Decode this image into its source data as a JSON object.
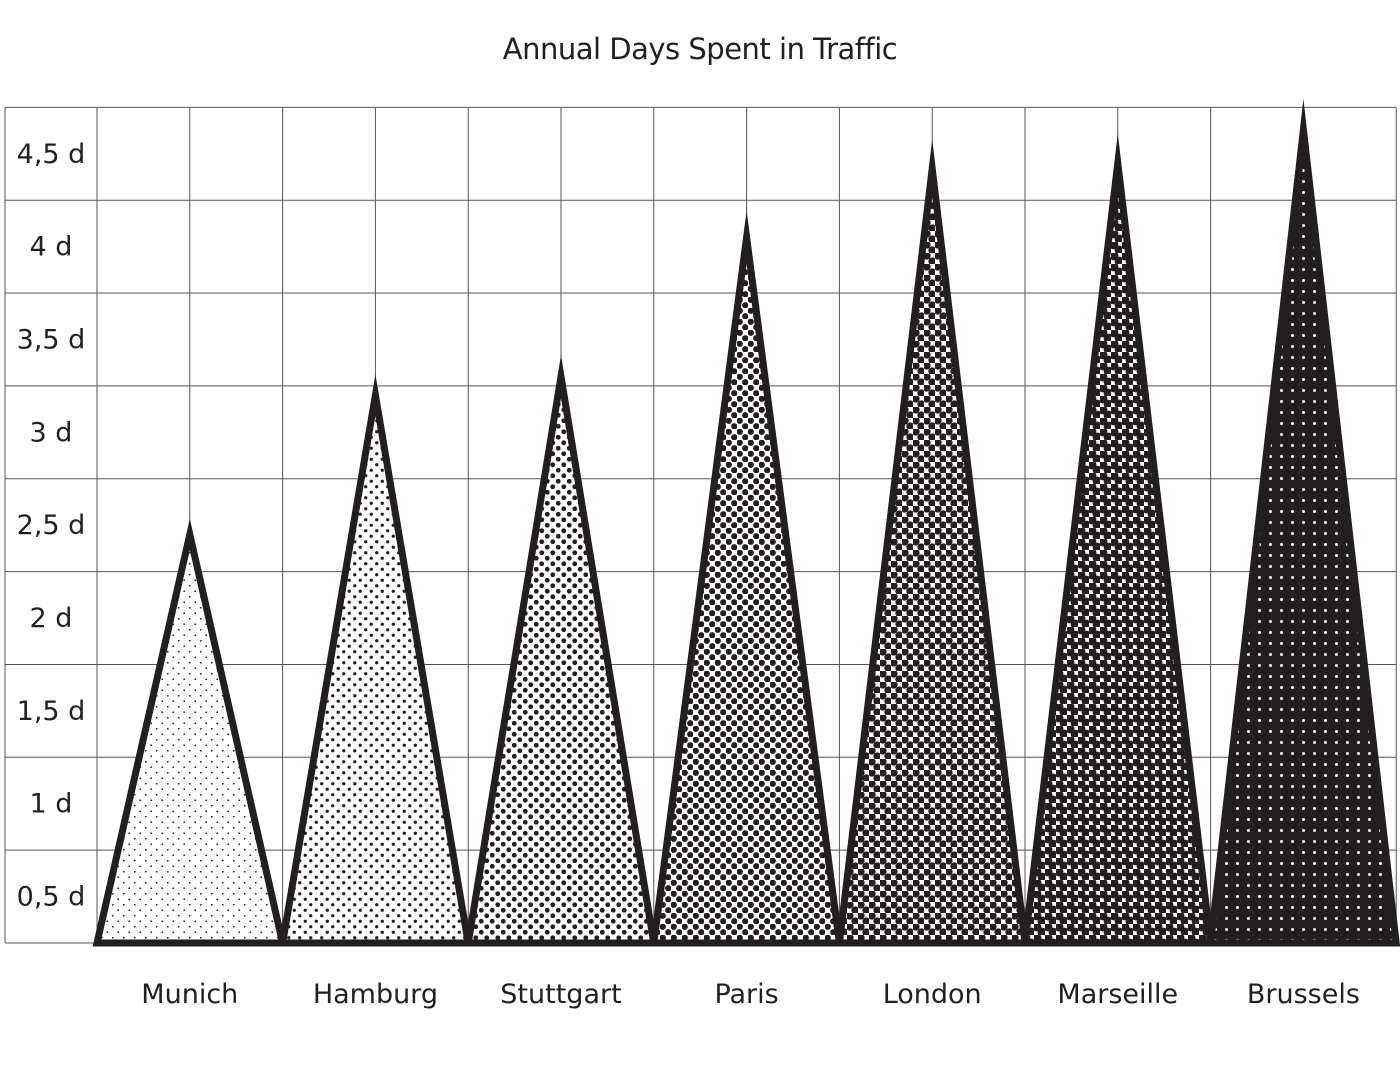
{
  "chart_data": {
    "type": "bar",
    "title": "Annual Days Spent in Traffic",
    "xlabel": "",
    "ylabel": "",
    "categories": [
      "Munich",
      "Hamburg",
      "Stuttgart",
      "Paris",
      "London",
      "Marseille",
      "Brussels"
    ],
    "values": [
      2.2,
      2.95,
      3.05,
      3.8,
      4.17,
      4.2,
      4.38
    ],
    "ylim": [
      0,
      4.5
    ],
    "yticks": [
      {
        "value": 0.5,
        "label": "0,5 d"
      },
      {
        "value": 1,
        "label": "1 d"
      },
      {
        "value": 1.5,
        "label": "1,5 d"
      },
      {
        "value": 2,
        "label": "2 d"
      },
      {
        "value": 2.5,
        "label": "2,5 d"
      },
      {
        "value": 3,
        "label": "3 d"
      },
      {
        "value": 3.5,
        "label": "3,5 d"
      },
      {
        "value": 4,
        "label": "4 d"
      },
      {
        "value": 4.5,
        "label": "4,5 d"
      }
    ],
    "grid": true,
    "mark_shape": "triangle",
    "fill_style": "halftone dots, increasing density left to right",
    "colors": {
      "ink": "#231f20",
      "grid": "#555555",
      "background": "#ffffff"
    }
  }
}
